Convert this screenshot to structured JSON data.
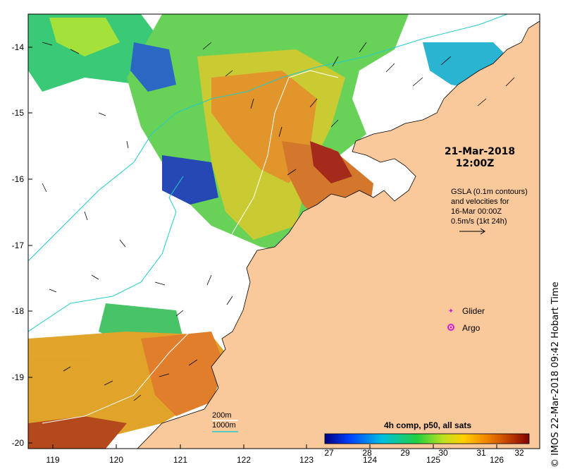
{
  "map": {
    "lon_ticks": [
      "119",
      "120",
      "121",
      "122",
      "123",
      "124",
      "125",
      "126"
    ],
    "lat_ticks": [
      "-14",
      "-15",
      "-16",
      "-17",
      "-18",
      "-19",
      "-20"
    ],
    "land_color": "#f9c99b",
    "ocean_color": "#ffffff"
  },
  "info": {
    "date": "21-Mar-2018",
    "time": "12:00Z",
    "gsla_line1": "GSLA (0.1m contours)",
    "gsla_line2": "and velocities for",
    "gsla_line3": "16-Mar 00:00Z",
    "gsla_line4": "0.5m/s (1kt 24h)"
  },
  "legend": {
    "glider": "Glider",
    "argo": "Argo",
    "glider_color": "#d020d0",
    "argo_color": "#d020d0"
  },
  "isobaths": {
    "label_200": "200m",
    "label_1000": "1000m",
    "color_200": "#ffffff",
    "color_1000": "#22cccc"
  },
  "colorbar": {
    "title": "4h comp, p50, all sats",
    "ticks": [
      "27",
      "28",
      "29",
      "30",
      "31",
      "32"
    ],
    "colors": [
      "#00007f",
      "#0040ff",
      "#00c0e0",
      "#20d040",
      "#c0e020",
      "#ffd000",
      "#f08000",
      "#c04000",
      "#800000"
    ]
  },
  "credit": "© IMOS 22-Mar-2018 09:42 Hobart Time"
}
